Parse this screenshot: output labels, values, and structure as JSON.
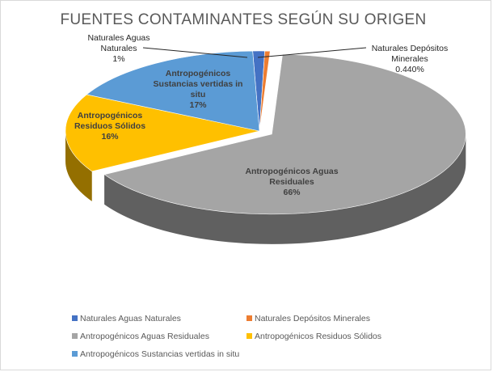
{
  "chart_data": {
    "type": "pie",
    "style": "3d",
    "title": "FUENTES CONTAMINANTES SEGÚN SU ORIGEN",
    "legend_position": "bottom",
    "slices": [
      {
        "name": "Naturales Aguas Naturales",
        "value": 1,
        "value_label": "1%",
        "label_lines": [
          "Naturales Aguas",
          "Naturales"
        ],
        "color": "#4472c4"
      },
      {
        "name": "Naturales Depósitos Minerales",
        "value": 0.44,
        "value_label": "0.440%",
        "label_lines": [
          "Naturales Depósitos",
          "Minerales"
        ],
        "color": "#ed7d31"
      },
      {
        "name": "Antropogénicos Aguas Residuales",
        "value": 66,
        "value_label": "66%",
        "label_lines": [
          "Antropogénicos  Aguas",
          "Residuales"
        ],
        "color": "#a5a5a5"
      },
      {
        "name": "Antropogénicos Residuos Sólidos",
        "value": 16,
        "value_label": "16%",
        "label_lines": [
          "Antropogénicos",
          "Residuos Sólidos"
        ],
        "color": "#ffc000"
      },
      {
        "name": "Antropogénicos Sustancias vertidas in situ",
        "value": 17,
        "value_label": "17%",
        "label_lines": [
          "Antropogénicos",
          "Sustancias vertidas in",
          "situ"
        ],
        "color": "#5b9bd5"
      }
    ],
    "legend": [
      "Naturales Aguas Naturales",
      "Naturales Depósitos Minerales",
      "Antropogénicos Aguas Residuales",
      "Antropogénicos Residuos Sólidos",
      "Antropogénicos Sustancias vertidas in situ"
    ]
  }
}
